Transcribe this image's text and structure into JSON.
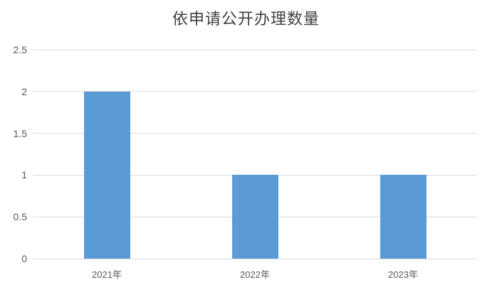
{
  "chart_data": {
    "type": "bar",
    "title": "依申请公开办理数量",
    "categories": [
      "2021年",
      "2022年",
      "2023年"
    ],
    "values": [
      2,
      1,
      1
    ],
    "xlabel": "",
    "ylabel": "",
    "ylim": [
      0,
      2.5
    ],
    "ytick_step": 0.5,
    "ytick_labels": [
      "0",
      "0.5",
      "1",
      "1.5",
      "2",
      "2.5"
    ],
    "grid": "horizontal",
    "legend": "none",
    "colors": {
      "bar": "#5B9BD5",
      "gridline": "#D9D9D9",
      "axis_labels": "#595959",
      "title": "#404040",
      "background": "#FFFFFF"
    }
  }
}
